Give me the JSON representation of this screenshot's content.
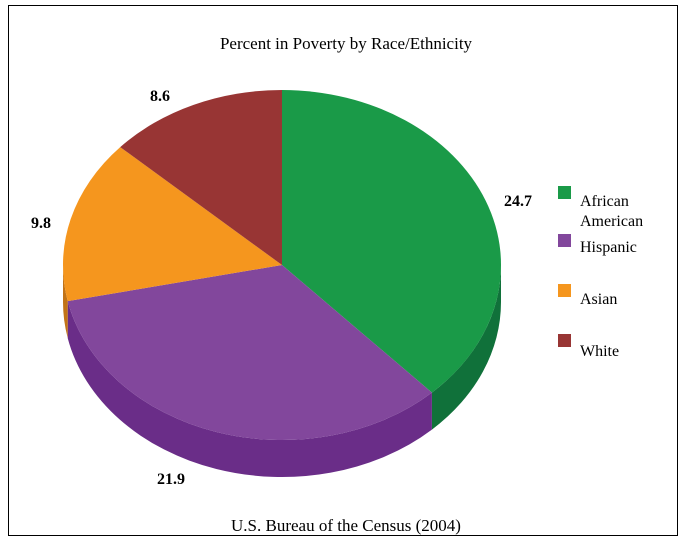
{
  "chart_data": {
    "type": "pie",
    "title": "Percent in Poverty by Race/Ethnicity",
    "source": "U.S. Bureau of the Census (2004)",
    "categories": [
      "African American",
      "Hispanic",
      "Asian",
      "White"
    ],
    "values": [
      24.7,
      21.9,
      9.8,
      8.6
    ],
    "value_labels": [
      "24.7",
      "21.9",
      "9.8",
      "8.6"
    ],
    "legend_labels": [
      [
        "African",
        "American"
      ],
      [
        "Hispanic"
      ],
      [
        "Asian"
      ],
      [
        "White"
      ]
    ],
    "colors": [
      "#1a9a48",
      "#82479c",
      "#f5961e",
      "#983534"
    ],
    "side_colors": [
      "#10713a",
      "#6a2d88",
      "#c27316",
      "#6e2322"
    ],
    "legend_position": "right",
    "style": "3d"
  }
}
